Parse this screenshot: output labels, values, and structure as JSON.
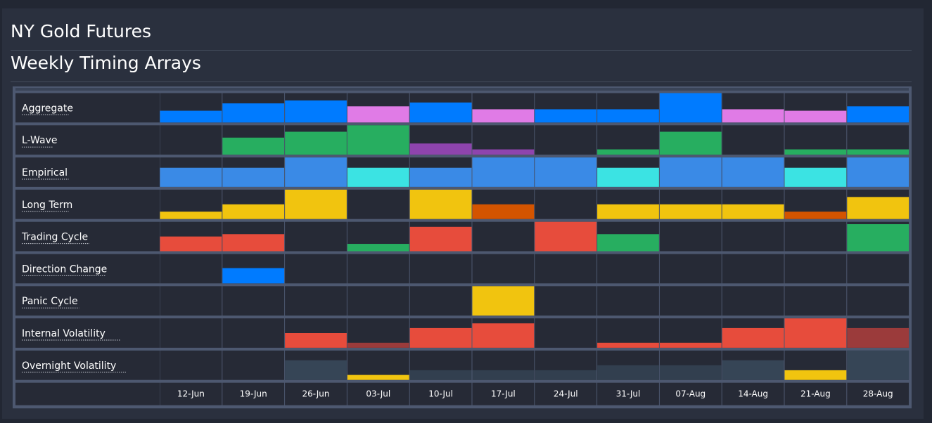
{
  "page": {
    "title": "NY Gold Futures",
    "subtitle": "Weekly Timing Arrays"
  },
  "colors": {
    "background": "#2a303e",
    "cell": "#262a36",
    "grid": "#4d5870",
    "blue": "#007bff",
    "magenta": "#e07be6",
    "green": "#27ae60",
    "purple": "#8e44ad",
    "steel": "#3a8ae6",
    "cyan": "#3be3e3",
    "yellow": "#f1c40f",
    "orange": "#d35400",
    "red": "#e74c3c",
    "darkred": "#9b3b3b",
    "slate": "#364556",
    "slate2": "#323f4f"
  },
  "chart_data": {
    "type": "heatmap",
    "categories": [
      "12-Jun",
      "19-Jun",
      "26-Jun",
      "03-Jul",
      "10-Jul",
      "17-Jul",
      "24-Jul",
      "31-Jul",
      "07-Aug",
      "14-Aug",
      "21-Aug",
      "28-Aug"
    ],
    "ylim": [
      0,
      1
    ],
    "series": [
      {
        "name": "Aggregate",
        "values": [
          0.4,
          0.65,
          0.75,
          0.55,
          0.68,
          0.45,
          0.45,
          0.45,
          1.0,
          0.45,
          0.4,
          0.55
        ],
        "colors": [
          "blue",
          "blue",
          "blue",
          "magenta",
          "blue",
          "magenta",
          "blue",
          "blue",
          "blue",
          "magenta",
          "magenta",
          "blue"
        ]
      },
      {
        "name": "L-Wave",
        "values": [
          0,
          0.58,
          0.78,
          1.0,
          0.38,
          0.18,
          0,
          0.18,
          0.78,
          0,
          0.18,
          0.18
        ],
        "colors": [
          "green",
          "green",
          "green",
          "green",
          "purple",
          "purple",
          "green",
          "green",
          "green",
          "green",
          "green",
          "green"
        ]
      },
      {
        "name": "Empirical",
        "values": [
          0.65,
          0.65,
          1.0,
          0.65,
          0.65,
          1.0,
          1.0,
          0.65,
          1.0,
          1.0,
          0.65,
          1.0
        ],
        "colors": [
          "steel",
          "steel",
          "steel",
          "cyan",
          "steel",
          "steel",
          "steel",
          "cyan",
          "steel",
          "steel",
          "cyan",
          "steel"
        ]
      },
      {
        "name": "Long Term",
        "values": [
          0.25,
          0.5,
          1.0,
          0,
          1.0,
          0.5,
          0,
          0.5,
          0.5,
          0.5,
          0.25,
          0.75
        ],
        "colors": [
          "yellow",
          "yellow",
          "yellow",
          "yellow",
          "yellow",
          "orange",
          "yellow",
          "yellow",
          "yellow",
          "yellow",
          "orange",
          "yellow"
        ]
      },
      {
        "name": "Trading Cycle",
        "values": [
          0.5,
          0.58,
          0,
          0.25,
          0.83,
          0,
          1.0,
          0.58,
          0,
          0,
          0,
          0.92
        ],
        "colors": [
          "red",
          "red",
          "red",
          "green",
          "red",
          "red",
          "red",
          "green",
          "red",
          "red",
          "red",
          "green"
        ]
      },
      {
        "name": "Direction Change",
        "values": [
          0,
          0.52,
          0,
          0,
          0,
          0,
          0,
          0,
          0,
          0,
          0,
          0
        ],
        "colors": [
          "blue",
          "blue",
          "blue",
          "blue",
          "blue",
          "blue",
          "blue",
          "blue",
          "blue",
          "blue",
          "blue",
          "blue"
        ]
      },
      {
        "name": "Panic Cycle",
        "values": [
          0,
          0,
          0,
          0,
          0,
          1.0,
          0,
          0,
          0,
          0,
          0,
          0
        ],
        "colors": [
          "yellow",
          "yellow",
          "yellow",
          "yellow",
          "yellow",
          "yellow",
          "yellow",
          "yellow",
          "yellow",
          "yellow",
          "yellow",
          "yellow"
        ]
      },
      {
        "name": "Internal Volatility",
        "values": [
          0,
          0,
          0.5,
          0.17,
          0.67,
          0.83,
          0,
          0.17,
          0.17,
          0.67,
          1.0,
          0.67
        ],
        "colors": [
          "red",
          "red",
          "red",
          "darkred",
          "red",
          "red",
          "red",
          "red",
          "red",
          "red",
          "red",
          "darkred"
        ]
      },
      {
        "name": "Overnight Volatility",
        "values": [
          0,
          0,
          0.67,
          0.17,
          0.33,
          0.33,
          0.33,
          0.5,
          0.5,
          0.67,
          0.33,
          1.0
        ],
        "colors": [
          "slate",
          "slate",
          "slate",
          "yellow",
          "slate2",
          "slate2",
          "slate2",
          "slate2",
          "slate2",
          "slate",
          "yellow",
          "slate"
        ]
      }
    ]
  }
}
